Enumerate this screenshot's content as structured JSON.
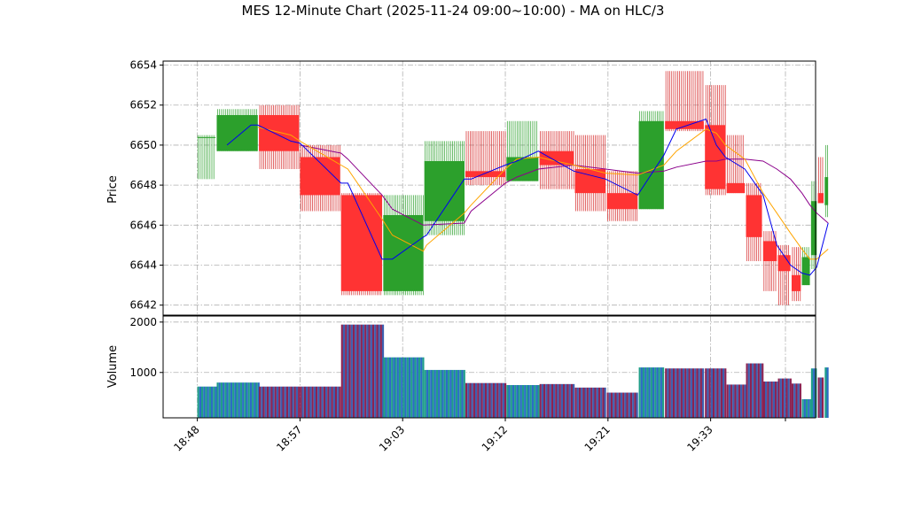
{
  "chart_data": {
    "type": "candlestick",
    "title": "MES 12-Minute Chart (2025-11-24 09:00~10:00) - MA on HLC/3",
    "ylabel_price": "Price",
    "ylabel_volume": "Volume",
    "price_ylim": [
      6641.5,
      6654.2
    ],
    "price_ticks": [
      6642,
      6644,
      6646,
      6648,
      6650,
      6652,
      6654
    ],
    "volume_ylim": [
      100,
      2120
    ],
    "volume_ticks": [
      1000,
      2000
    ],
    "x_ticks": [
      {
        "label": "18:48",
        "x": 0
      },
      {
        "label": "18:57",
        "x": 9
      },
      {
        "label": "19:03",
        "x": 18
      },
      {
        "label": "19:12",
        "x": 27
      },
      {
        "label": "19:21",
        "x": 36
      },
      {
        "label": "19:33",
        "x": 45
      }
    ],
    "xlim": [
      -3,
      54.2
    ],
    "grid": true,
    "colors": {
      "up": "#2ca02c",
      "down": "#ff3333",
      "wick_up": "#2ca02c",
      "wick_down": "#d62728",
      "ma_short": "#0000ee",
      "ma_mid": "#ffa500",
      "ma_long": "#8b008b",
      "vol_up_a": "#1f9e89",
      "vol_up_b": "#2b6cc4",
      "vol_down_a": "#8b2252",
      "vol_down_b": "#3b5fb0"
    },
    "candles": [
      {
        "x0": 0,
        "x1": 1.6,
        "o": 6650.4,
        "h": 6650.5,
        "l": 6648.3,
        "c": 6650.4,
        "v": 720
      },
      {
        "x0": 1.7,
        "x1": 5.3,
        "o": 6649.7,
        "h": 6651.8,
        "l": 6649.7,
        "c": 6651.5,
        "v": 800
      },
      {
        "x0": 5.4,
        "x1": 8.9,
        "o": 6651.5,
        "h": 6652.0,
        "l": 6648.8,
        "c": 6649.7,
        "v": 720
      },
      {
        "x0": 9.0,
        "x1": 12.5,
        "o": 6649.4,
        "h": 6650.0,
        "l": 6646.7,
        "c": 6647.5,
        "v": 720
      },
      {
        "x0": 12.6,
        "x1": 16.2,
        "o": 6647.5,
        "h": 6647.6,
        "l": 6642.5,
        "c": 6642.7,
        "v": 1950
      },
      {
        "x0": 16.3,
        "x1": 19.8,
        "o": 6642.7,
        "h": 6647.5,
        "l": 6642.5,
        "c": 6646.5,
        "v": 1300
      },
      {
        "x0": 19.9,
        "x1": 23.4,
        "o": 6646.2,
        "h": 6650.2,
        "l": 6645.5,
        "c": 6649.2,
        "v": 1050
      },
      {
        "x0": 23.5,
        "x1": 27.0,
        "o": 6648.7,
        "h": 6650.7,
        "l": 6648.0,
        "c": 6648.4,
        "v": 790
      },
      {
        "x0": 27.1,
        "x1": 29.9,
        "o": 6648.2,
        "h": 6651.2,
        "l": 6648.2,
        "c": 6649.4,
        "v": 750
      },
      {
        "x0": 30.0,
        "x1": 33.0,
        "o": 6649.7,
        "h": 6650.7,
        "l": 6647.8,
        "c": 6649.0,
        "v": 770
      },
      {
        "x0": 33.1,
        "x1": 35.8,
        "o": 6648.8,
        "h": 6650.5,
        "l": 6646.7,
        "c": 6647.6,
        "v": 700
      },
      {
        "x0": 35.9,
        "x1": 38.6,
        "o": 6647.6,
        "h": 6648.7,
        "l": 6646.2,
        "c": 6646.8,
        "v": 600
      },
      {
        "x0": 38.7,
        "x1": 40.9,
        "o": 6646.8,
        "h": 6651.7,
        "l": 6646.8,
        "c": 6651.2,
        "v": 1100
      },
      {
        "x0": 41.0,
        "x1": 44.4,
        "o": 6651.2,
        "h": 6653.7,
        "l": 6650.7,
        "c": 6650.8,
        "v": 1080
      },
      {
        "x0": 44.5,
        "x1": 46.3,
        "o": 6651.0,
        "h": 6653.0,
        "l": 6647.5,
        "c": 6647.8,
        "v": 1080
      },
      {
        "x0": 46.4,
        "x1": 48.0,
        "o": 6648.1,
        "h": 6650.5,
        "l": 6647.6,
        "c": 6647.6,
        "v": 760
      },
      {
        "x0": 48.1,
        "x1": 49.5,
        "o": 6647.5,
        "h": 6648.1,
        "l": 6644.2,
        "c": 6645.4,
        "v": 1180
      },
      {
        "x0": 49.6,
        "x1": 50.8,
        "o": 6645.2,
        "h": 6645.7,
        "l": 6642.7,
        "c": 6644.2,
        "v": 820
      },
      {
        "x0": 50.9,
        "x1": 52.0,
        "o": 6644.5,
        "h": 6645.0,
        "l": 6642.0,
        "c": 6643.7,
        "v": 880
      },
      {
        "x0": 52.1,
        "x1": 52.9,
        "o": 6643.5,
        "h": 6644.9,
        "l": 6642.2,
        "c": 6642.7,
        "v": 780
      },
      {
        "x0": 53.0,
        "x1": 53.7,
        "o": 6643.0,
        "h": 6644.9,
        "l": 6643.0,
        "c": 6644.4,
        "v": 470
      },
      {
        "x0": 53.8,
        "x1": 54.3,
        "o": 6644.5,
        "h": 6648.2,
        "l": 6643.8,
        "c": 6647.2,
        "v": 1080
      },
      {
        "x0": 54.4,
        "x1": 54.9,
        "o": 6647.6,
        "h": 6649.4,
        "l": 6647.1,
        "c": 6647.1,
        "v": 900
      },
      {
        "x0": 55.0,
        "x1": 55.3,
        "o": 6647.0,
        "h": 6650.0,
        "l": 6646.4,
        "c": 6648.4,
        "v": 1100
      }
    ],
    "ma_short": {
      "name": "",
      "points": [
        [
          2.6,
          6650.0
        ],
        [
          4.7,
          6651.0
        ],
        [
          5.3,
          6651.0
        ],
        [
          8.2,
          6650.2
        ],
        [
          9.0,
          6650.1
        ],
        [
          12.6,
          6648.1
        ],
        [
          13.2,
          6648.1
        ],
        [
          16.2,
          6644.3
        ],
        [
          17.1,
          6644.3
        ],
        [
          19.8,
          6645.4
        ],
        [
          20.1,
          6645.5
        ],
        [
          23.4,
          6648.3
        ],
        [
          24.0,
          6648.3
        ],
        [
          27.0,
          6649.0
        ],
        [
          28.0,
          6649.2
        ],
        [
          29.9,
          6649.7
        ],
        [
          33.0,
          6648.7
        ],
        [
          35.8,
          6648.3
        ],
        [
          38.6,
          6647.5
        ],
        [
          40.9,
          6649.5
        ],
        [
          42.0,
          6650.8
        ],
        [
          44.6,
          6651.3
        ],
        [
          45.5,
          6650.0
        ],
        [
          46.3,
          6649.4
        ],
        [
          48.0,
          6648.8
        ],
        [
          49.6,
          6647.5
        ],
        [
          50.8,
          6645.0
        ],
        [
          52.0,
          6644.0
        ],
        [
          53.0,
          6643.6
        ],
        [
          53.7,
          6643.5
        ],
        [
          54.3,
          6643.9
        ],
        [
          55.3,
          6646.1
        ]
      ]
    },
    "ma_mid": {
      "name": "",
      "points": [
        [
          5.3,
          6650.9
        ],
        [
          8.2,
          6650.5
        ],
        [
          9.0,
          6650.2
        ],
        [
          12.6,
          6649.0
        ],
        [
          13.2,
          6648.8
        ],
        [
          16.2,
          6646.3
        ],
        [
          17.1,
          6645.5
        ],
        [
          19.8,
          6644.7
        ],
        [
          20.1,
          6645.0
        ],
        [
          23.4,
          6646.6
        ],
        [
          24.0,
          6647.0
        ],
        [
          27.0,
          6648.8
        ],
        [
          28.0,
          6649.3
        ],
        [
          29.9,
          6649.4
        ],
        [
          33.0,
          6649.0
        ],
        [
          35.8,
          6648.6
        ],
        [
          38.6,
          6648.5
        ],
        [
          40.9,
          6649.0
        ],
        [
          42.0,
          6649.7
        ],
        [
          44.6,
          6650.8
        ],
        [
          45.5,
          6650.6
        ],
        [
          46.3,
          6650.0
        ],
        [
          48.0,
          6649.3
        ],
        [
          49.6,
          6647.6
        ],
        [
          50.8,
          6646.6
        ],
        [
          52.0,
          6645.6
        ],
        [
          53.0,
          6644.8
        ],
        [
          53.7,
          6644.3
        ],
        [
          54.3,
          6644.3
        ],
        [
          55.3,
          6644.8
        ]
      ]
    },
    "ma_long": {
      "name": "",
      "points": [
        [
          9.0,
          6650.0
        ],
        [
          12.6,
          6649.6
        ],
        [
          13.2,
          6649.3
        ],
        [
          16.2,
          6647.5
        ],
        [
          17.1,
          6646.8
        ],
        [
          19.8,
          6646.0
        ],
        [
          23.4,
          6646.1
        ],
        [
          24.0,
          6646.7
        ],
        [
          27.0,
          6648.1
        ],
        [
          28.0,
          6648.4
        ],
        [
          29.9,
          6648.8
        ],
        [
          33.0,
          6649.0
        ],
        [
          35.8,
          6648.8
        ],
        [
          38.6,
          6648.6
        ],
        [
          40.9,
          6648.7
        ],
        [
          42.0,
          6648.9
        ],
        [
          44.6,
          6649.2
        ],
        [
          45.5,
          6649.2
        ],
        [
          46.3,
          6649.3
        ],
        [
          48.0,
          6649.3
        ],
        [
          49.6,
          6649.2
        ],
        [
          50.8,
          6648.8
        ],
        [
          52.0,
          6648.3
        ],
        [
          53.0,
          6647.6
        ],
        [
          53.7,
          6647.0
        ],
        [
          54.3,
          6646.6
        ],
        [
          55.3,
          6646.1
        ]
      ]
    }
  }
}
